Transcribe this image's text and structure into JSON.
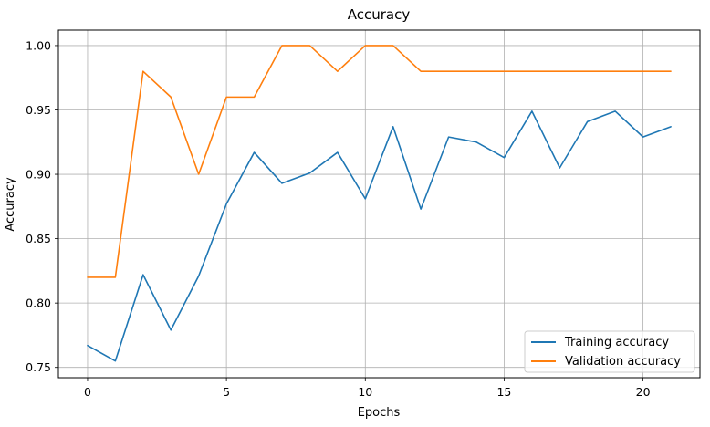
{
  "chart_data": {
    "type": "line",
    "title": "Accuracy",
    "xlabel": "Epochs",
    "ylabel": "Accuracy",
    "x": [
      0,
      1,
      2,
      3,
      4,
      5,
      6,
      7,
      8,
      9,
      10,
      11,
      12,
      13,
      14,
      15,
      16,
      17,
      18,
      19,
      20,
      21
    ],
    "xlim": [
      -1.05,
      22.05
    ],
    "ylim": [
      0.742,
      1.012
    ],
    "xticks": [
      0,
      5,
      10,
      15,
      20
    ],
    "xtick_labels": [
      "0",
      "5",
      "10",
      "15",
      "20"
    ],
    "yticks": [
      0.75,
      0.8,
      0.85,
      0.9,
      0.95,
      1.0
    ],
    "ytick_labels": [
      "0.75",
      "0.80",
      "0.85",
      "0.90",
      "0.95",
      "1.00"
    ],
    "grid": true,
    "legend_position": "lower-right",
    "series": [
      {
        "name": "Training accuracy",
        "color": "#1f77b4",
        "values": [
          0.767,
          0.755,
          0.822,
          0.779,
          0.821,
          0.877,
          0.917,
          0.893,
          0.901,
          0.917,
          0.881,
          0.937,
          0.873,
          0.929,
          0.925,
          0.913,
          0.949,
          0.905,
          0.941,
          0.949,
          0.929,
          0.937
        ]
      },
      {
        "name": "Validation accuracy",
        "color": "#ff7f0e",
        "values": [
          0.82,
          0.82,
          0.98,
          0.96,
          0.9,
          0.96,
          0.96,
          1.0,
          1.0,
          0.98,
          1.0,
          1.0,
          0.98,
          0.98,
          0.98,
          0.98,
          0.98,
          0.98,
          0.98,
          0.98,
          0.98,
          0.98
        ]
      }
    ]
  }
}
